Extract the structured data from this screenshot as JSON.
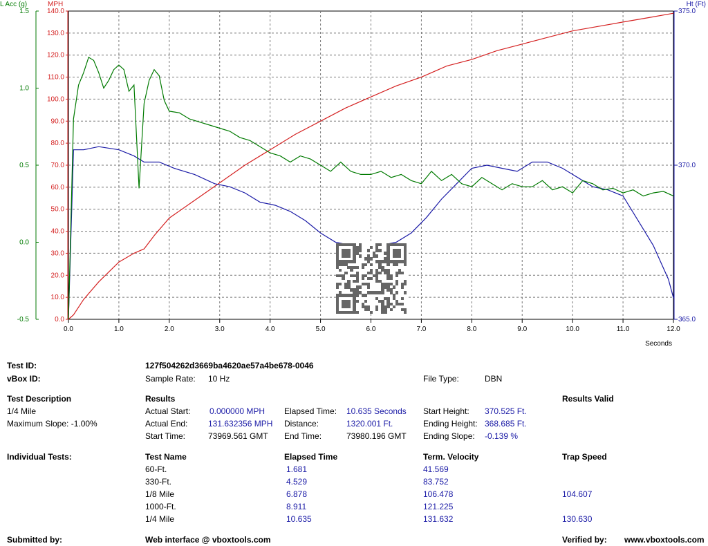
{
  "chart_data": {
    "type": "line",
    "xlabel": "Seconds",
    "x_ticks": [
      "0.0",
      "1.0",
      "2.0",
      "3.0",
      "4.0",
      "5.0",
      "6.0",
      "7.0",
      "8.0",
      "9.0",
      "10.0",
      "11.0",
      "12.0"
    ],
    "xlim": [
      0,
      12
    ],
    "grid": true,
    "axes": {
      "lacc": {
        "label": "L Acc (g)",
        "color": "#007a00",
        "ylim": [
          -0.5,
          1.5
        ],
        "ticks": [
          "-0.5",
          "0.0",
          "0.5",
          "1.0",
          "1.5"
        ],
        "tick_values": [
          -0.5,
          0.0,
          0.5,
          1.0,
          1.5
        ]
      },
      "mph": {
        "label": "MPH",
        "color": "#d42020",
        "ylim": [
          0,
          140
        ],
        "ticks": [
          "0.0",
          "10.0",
          "20.0",
          "30.0",
          "40.0",
          "50.0",
          "60.0",
          "70.0",
          "80.0",
          "90.0",
          "100.0",
          "110.0",
          "120.0",
          "130.0",
          "140.0"
        ],
        "tick_values": [
          0,
          10,
          20,
          30,
          40,
          50,
          60,
          70,
          80,
          90,
          100,
          110,
          120,
          130,
          140
        ]
      },
      "ht": {
        "label": "Ht (Ft)",
        "color": "#1a1aa6",
        "ylim": [
          365,
          375
        ],
        "ticks": [
          "365.0",
          "370.0",
          "375.0"
        ],
        "tick_values": [
          365,
          370,
          375
        ]
      }
    },
    "series": [
      {
        "axis": "mph",
        "color": "#d42020",
        "x": [
          0,
          0.1,
          0.3,
          0.6,
          1.0,
          1.3,
          1.5,
          1.7,
          2.0,
          2.5,
          3.0,
          3.5,
          4.0,
          4.5,
          5.0,
          5.5,
          6.0,
          6.5,
          7.0,
          7.5,
          8.0,
          8.5,
          9.0,
          9.5,
          10.0,
          10.5,
          11.0,
          11.5,
          12.0
        ],
        "y": [
          0,
          2,
          9,
          17,
          26,
          30,
          32,
          38,
          46,
          54,
          62,
          70,
          77,
          84,
          90,
          96,
          101,
          106,
          110,
          115,
          118,
          122,
          125,
          128,
          131,
          133,
          135,
          137,
          139
        ]
      },
      {
        "axis": "ht",
        "color": "#1a1aa6",
        "x": [
          0,
          0.1,
          0.3,
          0.6,
          1.0,
          1.3,
          1.5,
          1.8,
          2.1,
          2.5,
          2.9,
          3.2,
          3.5,
          3.8,
          4.1,
          4.4,
          4.7,
          5.0,
          5.3,
          5.6,
          5.9,
          6.2,
          6.5,
          6.8,
          7.1,
          7.4,
          7.7,
          8.0,
          8.3,
          8.6,
          8.9,
          9.2,
          9.5,
          9.8,
          10.1,
          10.4,
          10.7,
          11.0,
          11.3,
          11.6,
          11.9,
          12.0
        ],
        "y": [
          365,
          370.5,
          370.5,
          370.6,
          370.5,
          370.3,
          370.1,
          370.1,
          369.9,
          369.7,
          369.4,
          369.3,
          369.1,
          368.8,
          368.7,
          368.5,
          368.2,
          367.8,
          367.5,
          367.4,
          367.3,
          367.4,
          367.5,
          367.8,
          368.3,
          368.9,
          369.4,
          369.9,
          370.0,
          369.9,
          369.8,
          370.1,
          370.1,
          369.9,
          369.6,
          369.3,
          369.2,
          369.0,
          368.2,
          367.4,
          366.3,
          365.7
        ]
      },
      {
        "axis": "lacc",
        "color": "#007a00",
        "x": [
          0,
          0.1,
          0.2,
          0.3,
          0.4,
          0.5,
          0.6,
          0.7,
          0.8,
          0.9,
          1.0,
          1.1,
          1.2,
          1.3,
          1.4,
          1.5,
          1.6,
          1.7,
          1.8,
          1.9,
          2.0,
          2.2,
          2.4,
          2.6,
          2.8,
          3.0,
          3.2,
          3.4,
          3.6,
          3.8,
          4.0,
          4.2,
          4.4,
          4.6,
          4.8,
          5.0,
          5.2,
          5.4,
          5.6,
          5.8,
          6.0,
          6.2,
          6.4,
          6.6,
          6.8,
          7.0,
          7.2,
          7.4,
          7.6,
          7.8,
          8.0,
          8.2,
          8.4,
          8.6,
          8.8,
          9.0,
          9.2,
          9.4,
          9.6,
          9.8,
          10.0,
          10.2,
          10.4,
          10.6,
          10.8,
          11.0,
          11.2,
          11.4,
          11.6,
          11.8,
          12.0
        ],
        "y": [
          -0.5,
          0.8,
          1.02,
          1.1,
          1.2,
          1.18,
          1.1,
          1.0,
          1.05,
          1.12,
          1.15,
          1.12,
          0.98,
          1.02,
          0.35,
          0.9,
          1.05,
          1.12,
          1.08,
          0.92,
          0.85,
          0.84,
          0.8,
          0.78,
          0.76,
          0.74,
          0.72,
          0.68,
          0.66,
          0.62,
          0.58,
          0.56,
          0.52,
          0.56,
          0.54,
          0.5,
          0.46,
          0.52,
          0.46,
          0.44,
          0.44,
          0.46,
          0.42,
          0.44,
          0.4,
          0.38,
          0.46,
          0.4,
          0.44,
          0.38,
          0.36,
          0.42,
          0.38,
          0.34,
          0.38,
          0.36,
          0.36,
          0.4,
          0.34,
          0.36,
          0.32,
          0.4,
          0.38,
          0.34,
          0.35,
          0.32,
          0.34,
          0.3,
          0.32,
          0.33,
          0.3
        ]
      }
    ]
  },
  "report": {
    "test_id_label": "Test ID:",
    "test_id": "127f504262d3669ba4620ae57a4be678-0046",
    "vbox_id_label": "vBox ID:",
    "sample_rate_label": "Sample Rate:",
    "sample_rate": "10 Hz",
    "file_type_label": "File Type:",
    "file_type": "DBN",
    "test_desc_label": "Test Description",
    "test_desc": "1/4 Mile",
    "max_slope": "Maximum Slope:  -1.00%",
    "results_label": "Results",
    "results_valid": "Results Valid",
    "actual_start_label": "Actual Start:",
    "actual_start": "0.000000 MPH",
    "actual_end_label": "Actual End:",
    "actual_end": "131.632356 MPH",
    "start_time_label": "Start Time:",
    "start_time": "73969.561 GMT",
    "elapsed_label": "Elapsed Time:",
    "elapsed": "10.635 Seconds",
    "distance_label": "Distance:",
    "distance": "1320.001 Ft.",
    "end_time_label": "End Time:",
    "end_time": "73980.196 GMT",
    "start_height_label": "Start Height:",
    "start_height": "370.525 Ft.",
    "end_height_label": "Ending Height:",
    "end_height": "368.685 Ft.",
    "end_slope_label": "Ending Slope:",
    "end_slope": "-0.139 %",
    "individual_label": "Individual Tests:",
    "col_name": "Test Name",
    "col_elapsed": "Elapsed Time",
    "col_velocity": "Term. Velocity",
    "col_trap": "Trap Speed",
    "tests": [
      {
        "name": "60-Ft.",
        "elapsed": "1.681",
        "velocity": "41.569",
        "trap": ""
      },
      {
        "name": "330-Ft.",
        "elapsed": "4.529",
        "velocity": "83.752",
        "trap": ""
      },
      {
        "name": "1/8 Mile",
        "elapsed": "6.878",
        "velocity": "106.478",
        "trap": "104.607"
      },
      {
        "name": "1000-Ft.",
        "elapsed": "8.911",
        "velocity": "121.225",
        "trap": ""
      },
      {
        "name": "1/4 Mile",
        "elapsed": "10.635",
        "velocity": "131.632",
        "trap": "130.630"
      }
    ],
    "submitted_label": "Submitted by:",
    "web_interface": "Web interface @ vboxtools.com",
    "verified_label": "Verified by:",
    "verified_site": "www.vboxtools.com"
  }
}
